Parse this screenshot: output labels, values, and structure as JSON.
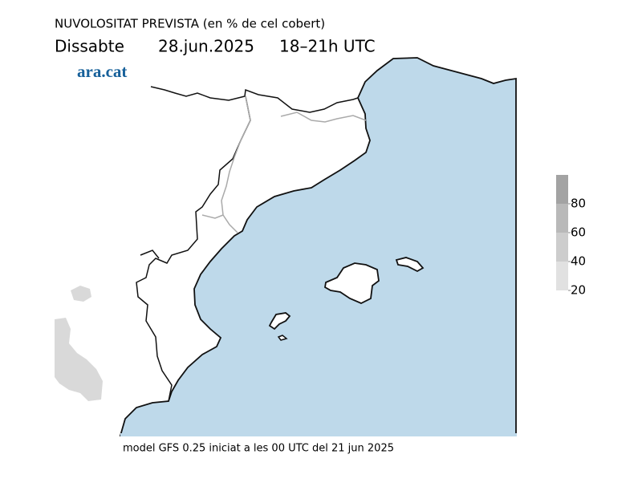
{
  "title": "NUVOLOSITAT PREVISTA (en % de cel cobert)",
  "date_line": {
    "day": "Dissabte",
    "date": "28.jun.2025",
    "hours": "18–21h UTC"
  },
  "logo": "ara.cat",
  "colorbar": {
    "range": [
      20,
      100
    ],
    "ticks": [
      20,
      40,
      60,
      80
    ],
    "levels": [
      20,
      40,
      60,
      80
    ],
    "colors": [
      "#e1e1e1",
      "#cdcdcd",
      "#b9b9b9",
      "#a3a3a3"
    ]
  },
  "footer": "model GFS 0.25 iniciat a les 00 UTC del 21 jun 2025"
}
